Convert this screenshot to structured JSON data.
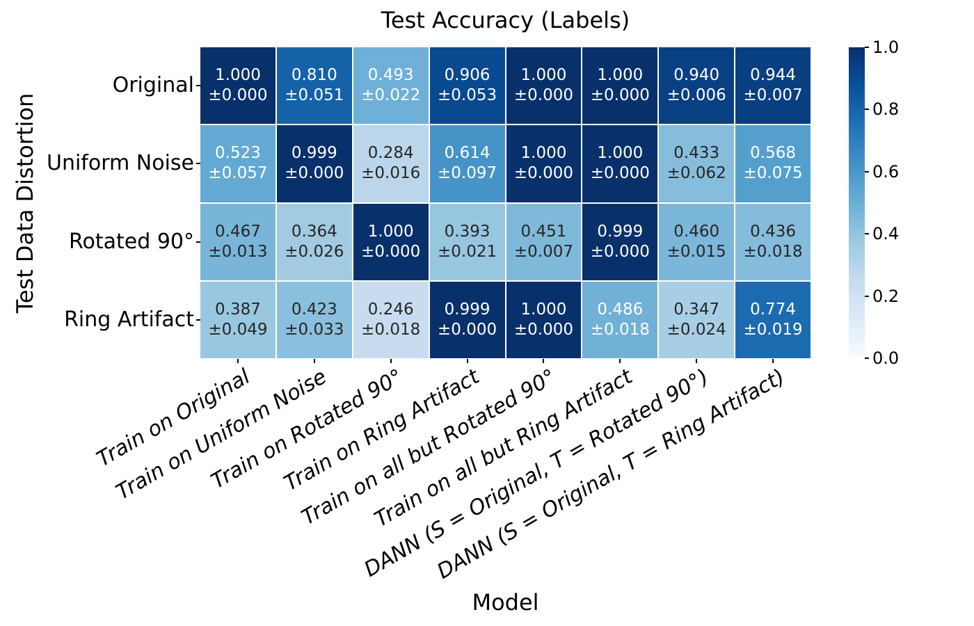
{
  "chart_data": {
    "type": "heatmap",
    "title": "Test Accuracy (Labels)",
    "xlabel": "Model",
    "ylabel": "Test Data Distortion",
    "x_tick_labels": [
      "Train on Original",
      "Train on Uniform Noise",
      "Train on Rotated 90°",
      "Train on Ring Artifact",
      "Train on all but Rotated 90°",
      "Train on all but Ring Artifact",
      "DANN (S = Original, T = Rotated 90°)",
      "DANN (S = Original, T = Ring Artifact)"
    ],
    "y_tick_labels": [
      "Original",
      "Uniform Noise",
      "Rotated 90°",
      "Ring Artifact"
    ],
    "means": [
      [
        1.0,
        0.81,
        0.493,
        0.906,
        1.0,
        1.0,
        0.94,
        0.944
      ],
      [
        0.523,
        0.999,
        0.284,
        0.614,
        1.0,
        1.0,
        0.433,
        0.568
      ],
      [
        0.467,
        0.364,
        1.0,
        0.393,
        0.451,
        0.999,
        0.46,
        0.436
      ],
      [
        0.387,
        0.423,
        0.246,
        0.999,
        1.0,
        0.486,
        0.347,
        0.774
      ]
    ],
    "stds": [
      [
        0.0,
        0.051,
        0.022,
        0.053,
        0.0,
        0.0,
        0.006,
        0.007
      ],
      [
        0.057,
        0.0,
        0.016,
        0.097,
        0.0,
        0.0,
        0.062,
        0.075
      ],
      [
        0.013,
        0.026,
        0.0,
        0.021,
        0.007,
        0.0,
        0.015,
        0.018
      ],
      [
        0.049,
        0.033,
        0.018,
        0.0,
        0.0,
        0.018,
        0.024,
        0.019
      ]
    ],
    "annotation_format": "mean ± std (3 decimals)",
    "colorbar": {
      "min": 0.0,
      "max": 1.0,
      "ticks": [
        0.0,
        0.2,
        0.4,
        0.6,
        0.8,
        1.0
      ],
      "position": "right"
    },
    "colormap_name": "Blues",
    "colormap_anchors": [
      "#f7fbff",
      "#deebf7",
      "#c6dbef",
      "#9ecae1",
      "#6baed6",
      "#4292c6",
      "#2171b5",
      "#08519c",
      "#08306b"
    ],
    "annotation_colors": {
      "on_dark": "#ffffff",
      "on_light": "#262626"
    },
    "grid_line_color": "#ffffff",
    "legend": "none"
  }
}
